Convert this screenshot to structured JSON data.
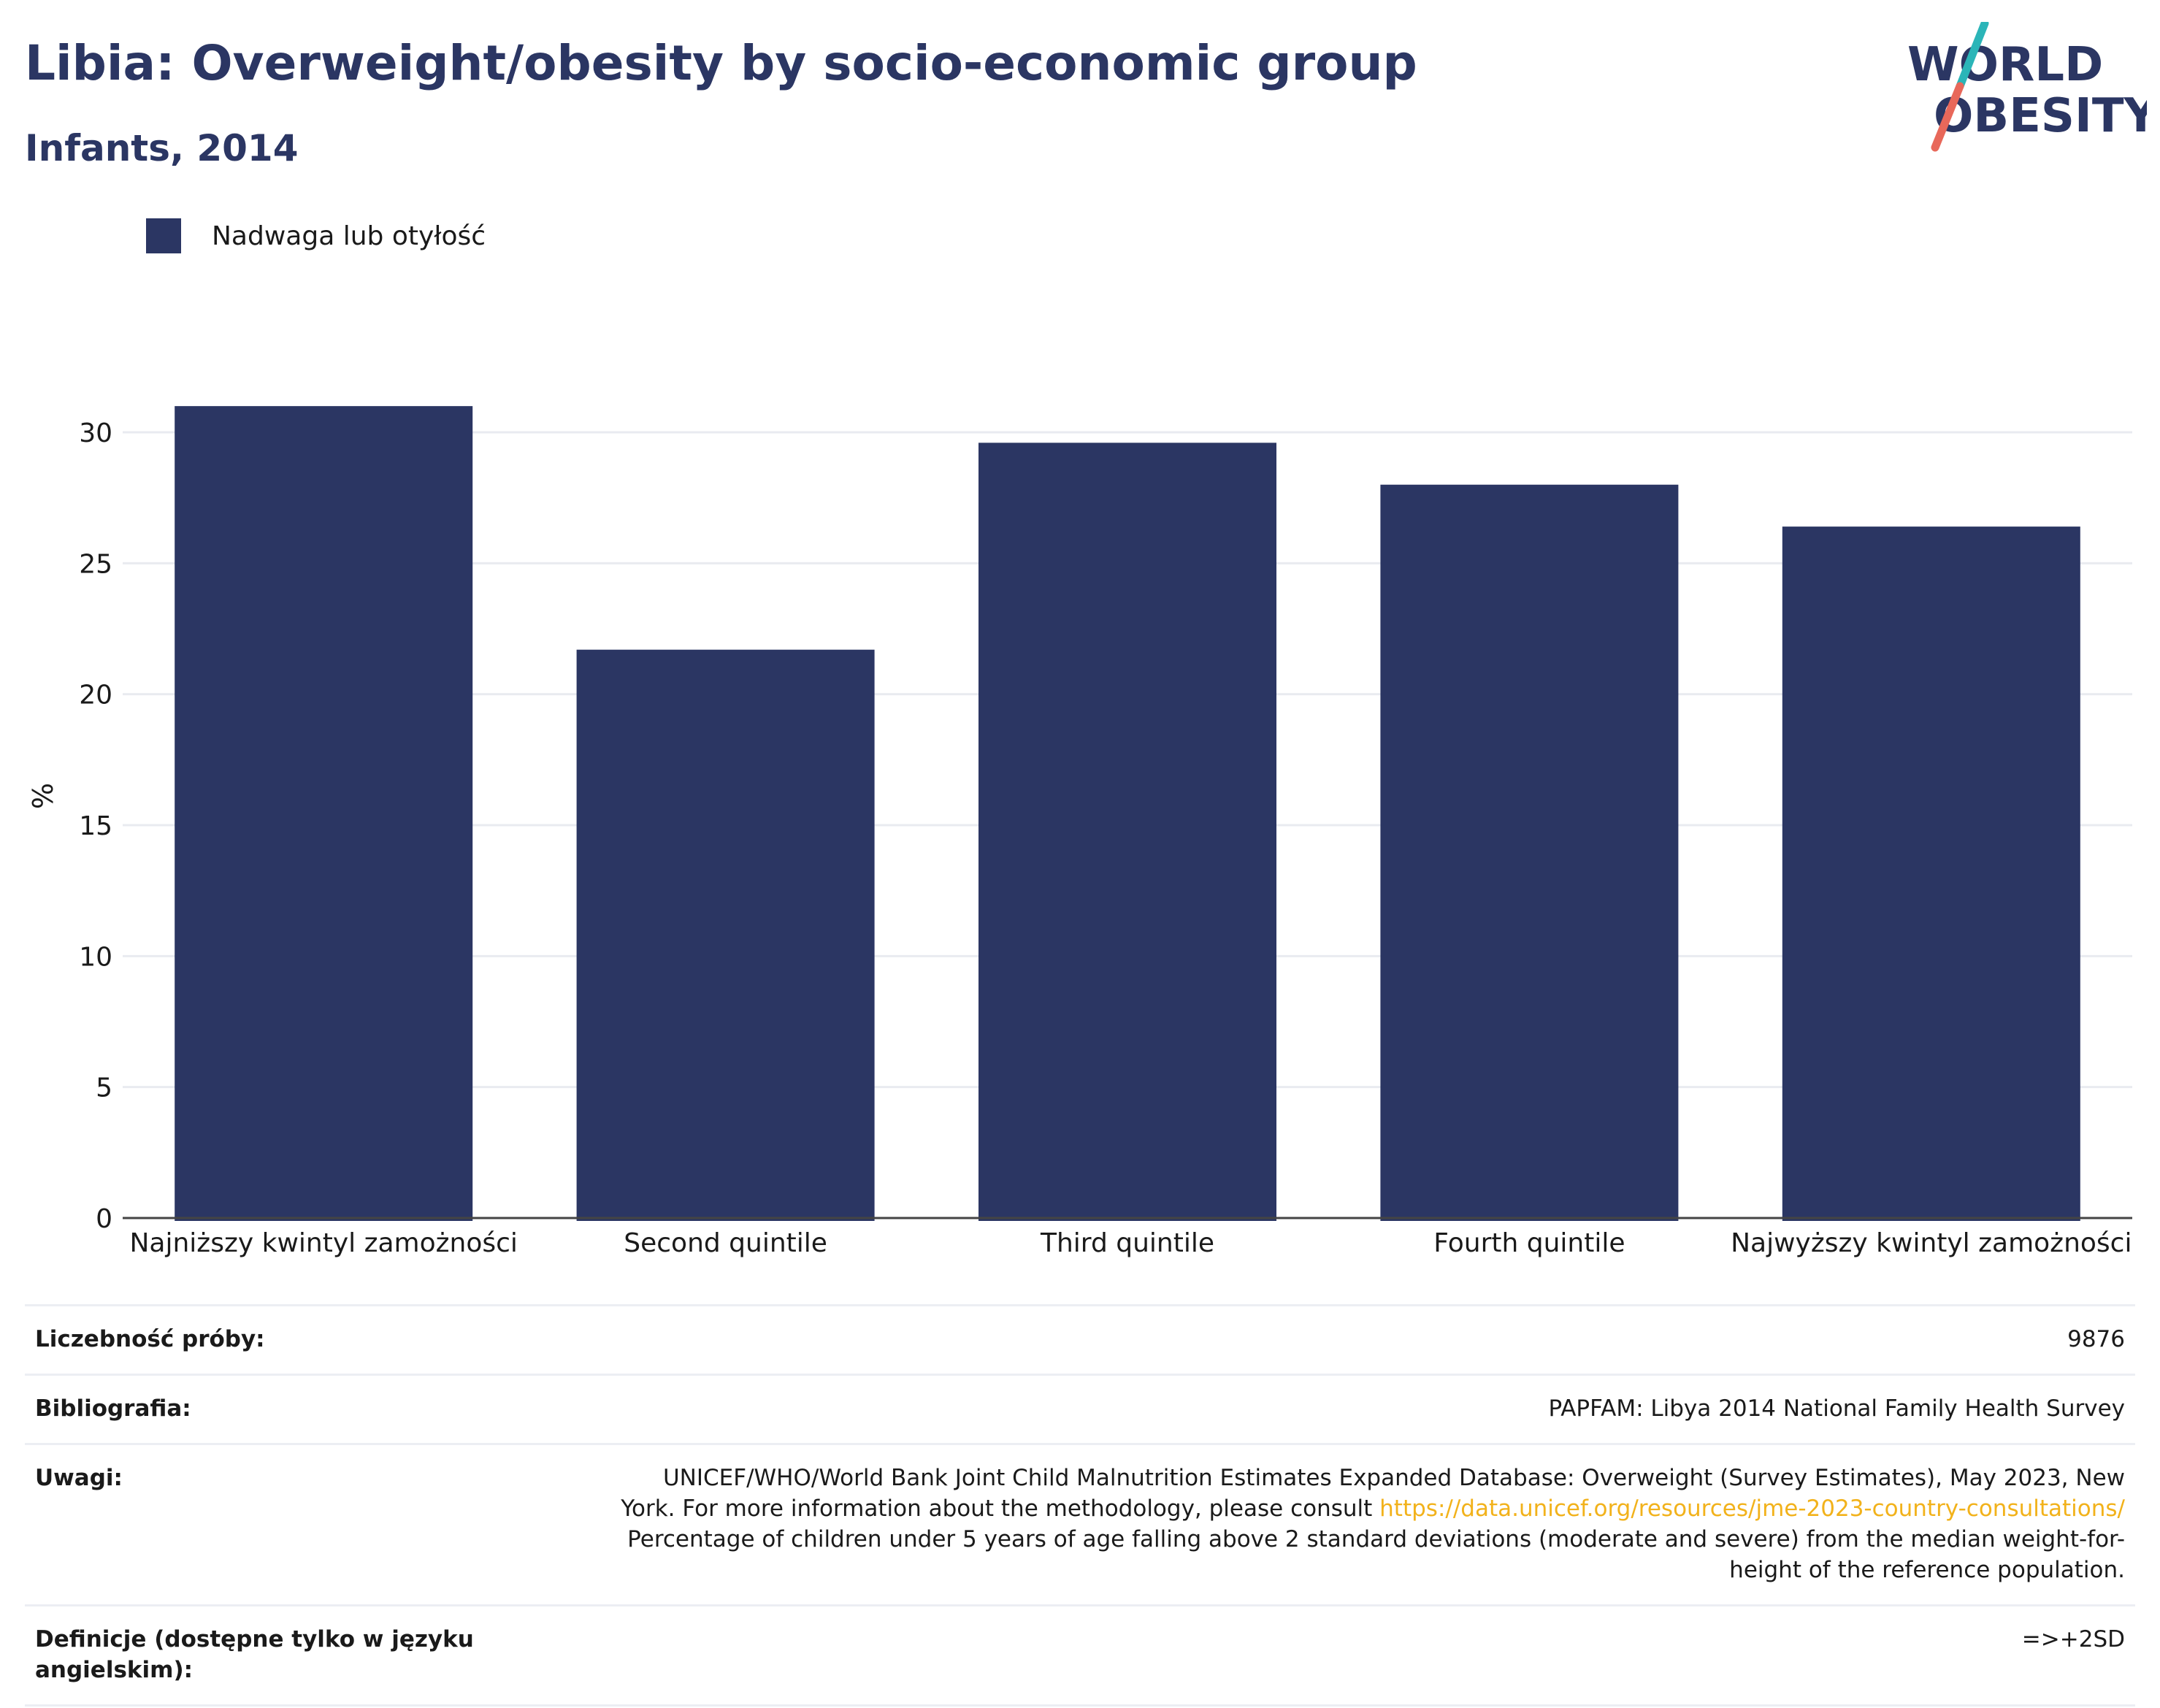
{
  "header": {
    "title": "Libia: Overweight/obesity by socio-economic group",
    "subtitle": "Infants, 2014"
  },
  "logo": {
    "line1": "WORLD",
    "line2": "OBESITY"
  },
  "colors": {
    "bar": "#2b3663",
    "title": "#2b3663",
    "link": "#f2b21b",
    "logo_teal": "#2bb5b8",
    "logo_red": "#e8685a"
  },
  "chart_data": {
    "type": "bar",
    "categories": [
      "Najniższy kwintyl zamożności",
      "Second quintile",
      "Third quintile",
      "Fourth quintile",
      "Najwyższy kwintyl zamożności"
    ],
    "series": [
      {
        "name": "Nadwaga lub otyłość",
        "values": [
          31.0,
          21.7,
          29.6,
          28.0,
          26.4
        ]
      }
    ],
    "ylabel": "%",
    "ylim": [
      0,
      33
    ],
    "yticks": [
      0,
      5,
      10,
      15,
      20,
      25,
      30
    ],
    "grid": true,
    "legend_position": "top-left"
  },
  "info": {
    "sample_size": {
      "label": "Liczebność próby:",
      "value": "9876"
    },
    "bibliography": {
      "label": "Bibliografia:",
      "value": "PAPFAM: Libya 2014 National Family Health Survey"
    },
    "notes": {
      "label": "Uwagi:",
      "line1": "UNICEF/WHO/World Bank Joint Child Malnutrition Estimates Expanded Database: Overweight (Survey Estimates), May 2023, New",
      "line2_prefix": "York. For more information about the methodology, please consult ",
      "link": "https://data.unicef.org/resources/jme-2023-country-consultations/",
      "line3": "Percentage of children under 5 years of age falling above 2 standard deviations (moderate and severe) from the median weight-for-",
      "line4": "height of the reference population."
    },
    "definitions": {
      "label": "Definicje (dostępne tylko w języku angielskim):",
      "value": "=>+2SD"
    }
  }
}
